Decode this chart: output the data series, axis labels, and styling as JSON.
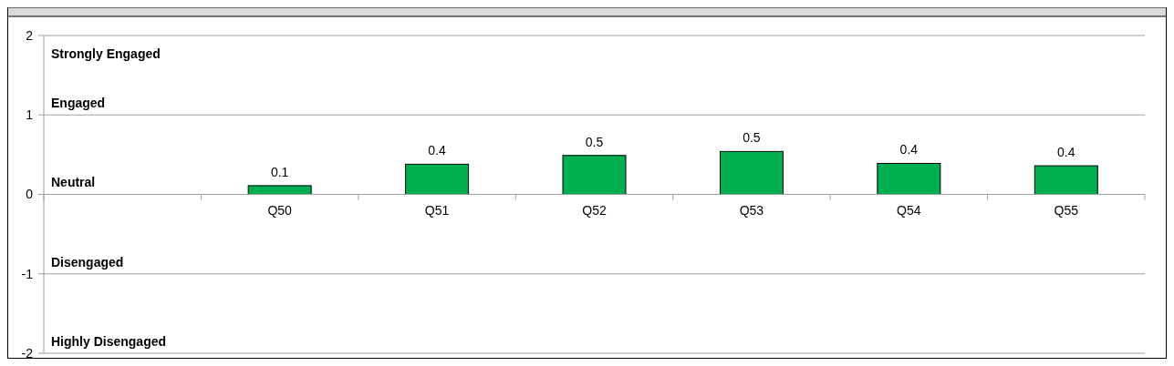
{
  "chart_data": {
    "type": "bar",
    "categories": [
      null,
      "Q50",
      "Q51",
      "Q52",
      "Q53",
      "Q54",
      "Q55"
    ],
    "values": [
      null,
      0.11,
      0.38,
      0.49,
      0.54,
      0.39,
      0.36
    ],
    "value_labels": [
      null,
      "0.1",
      "0.4",
      "0.5",
      "0.5",
      "0.4",
      "0.4"
    ],
    "color": "#00b050",
    "ylim": [
      -2,
      2
    ],
    "yticks": [
      -2,
      -1,
      0,
      1,
      2
    ],
    "grid": "y",
    "annotations": [
      "Strongly Engaged",
      "Engaged",
      "Neutral",
      "Disengaged",
      "Highly Disengaged"
    ]
  }
}
